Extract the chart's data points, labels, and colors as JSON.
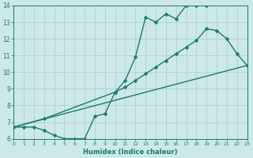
{
  "line1_x": [
    0,
    1,
    2,
    3,
    4,
    5,
    6,
    7,
    8,
    9,
    10,
    11,
    12,
    13,
    14,
    15,
    16,
    17,
    18,
    19
  ],
  "line1_y": [
    6.7,
    6.7,
    6.7,
    6.5,
    6.2,
    6.0,
    6.0,
    6.0,
    7.35,
    7.5,
    8.8,
    9.5,
    10.9,
    13.3,
    13.0,
    13.5,
    13.2,
    14.0,
    14.0,
    14.0
  ],
  "line2_x": [
    0,
    3,
    10,
    11,
    12,
    13,
    14,
    15,
    16,
    17,
    18,
    19,
    20,
    21,
    22,
    23
  ],
  "line2_y": [
    6.7,
    7.2,
    8.8,
    9.1,
    9.5,
    9.9,
    10.3,
    10.7,
    11.1,
    11.5,
    11.9,
    12.6,
    12.5,
    12.0,
    11.1,
    10.4
  ],
  "line3_x": [
    0,
    23
  ],
  "line3_y": [
    6.7,
    10.4
  ],
  "color": "#1a7a6e",
  "bg_color": "#cde8e8",
  "grid_color": "#b0d0d0",
  "xlabel": "Humidex (Indice chaleur)",
  "xlim": [
    0,
    23
  ],
  "ylim": [
    6,
    14
  ],
  "xticks": [
    0,
    1,
    2,
    3,
    4,
    5,
    6,
    7,
    8,
    9,
    10,
    11,
    12,
    13,
    14,
    15,
    16,
    17,
    18,
    19,
    20,
    21,
    22,
    23
  ],
  "yticks": [
    6,
    7,
    8,
    9,
    10,
    11,
    12,
    13,
    14
  ],
  "markersize": 2.5,
  "linewidth": 1.0
}
